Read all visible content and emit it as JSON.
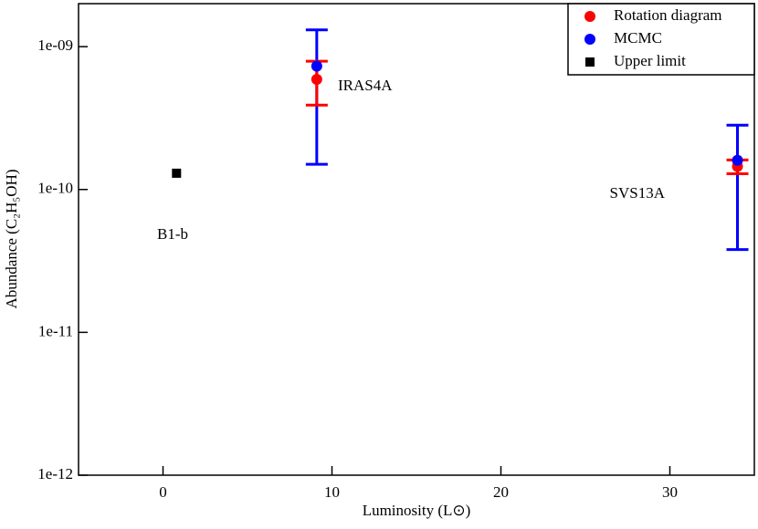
{
  "chart_data": {
    "type": "scatter",
    "x_label": "Luminosity (L⊙)",
    "y_label": "Abundance (C₂H₅OH)",
    "xlim": [
      -5,
      35
    ],
    "xticks": [
      0,
      10,
      20,
      30
    ],
    "ylim": [
      1e-12,
      2e-09
    ],
    "yscale": "log",
    "yticks": [
      {
        "value": 1e-12,
        "label": "1e-12"
      },
      {
        "value": 1e-11,
        "label": "1e-11"
      },
      {
        "value": 1e-10,
        "label": "1e-10"
      },
      {
        "value": 1e-09,
        "label": "1e-09"
      }
    ],
    "legend": "top-right",
    "series": [
      {
        "name": "Rotation diagram",
        "color": "#ff0000",
        "marker": "circle",
        "x": [
          9.1,
          34.0
        ],
        "values": [
          5.9e-10,
          1.45e-10
        ],
        "errors": [
          2e-10,
          1.6e-11
        ]
      },
      {
        "name": "MCMC",
        "color": "#0000ff",
        "marker": "circle",
        "x": [
          9.1,
          34.0
        ],
        "values": [
          7.3e-10,
          1.6e-10
        ],
        "errors": [
          5.8e-10,
          1.22e-10
        ]
      },
      {
        "name": "Upper limit",
        "color": "#000000",
        "marker": "square",
        "x": [
          0.8
        ],
        "values": [
          1.3e-10
        ]
      }
    ],
    "annotations": [
      "IRAS4A",
      "SVS13A",
      "B1-b"
    ]
  }
}
